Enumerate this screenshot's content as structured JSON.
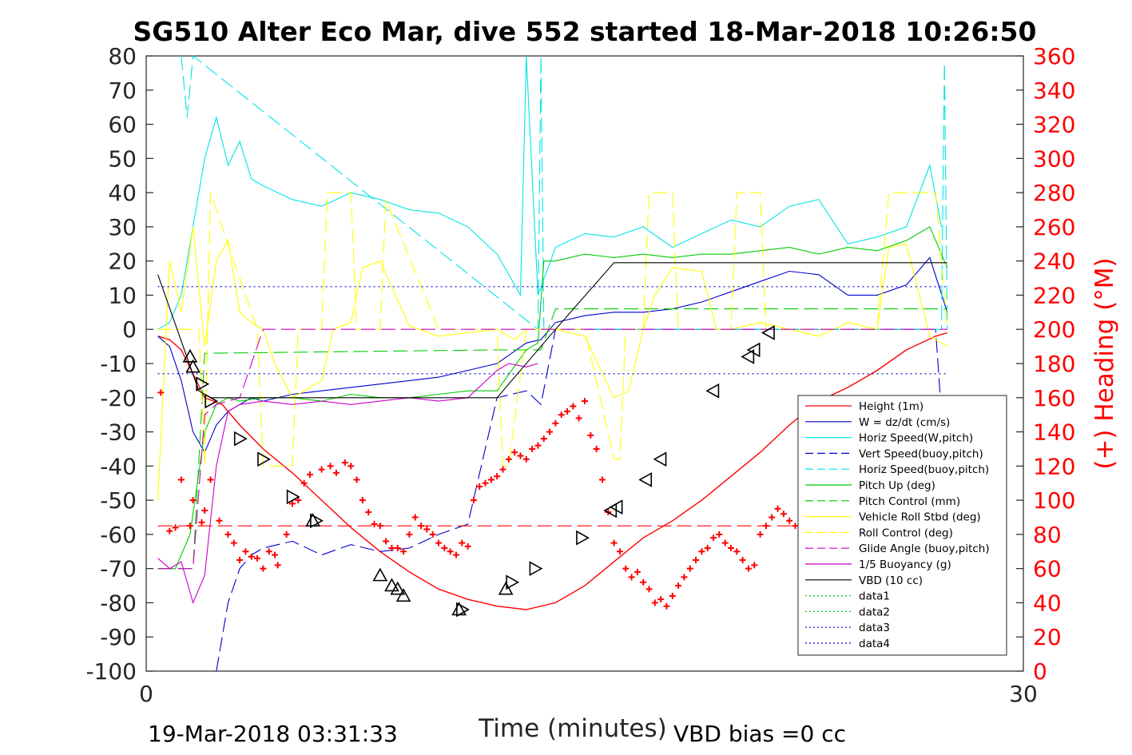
{
  "chart_data": {
    "type": "line",
    "title": "SG510 Alter Eco Mar, dive 552 started 18-Mar-2018 10:26:50",
    "xlabel": "Time (minutes)",
    "ylabel_right": "(+) Heading (°M)",
    "xlim": [
      0,
      30
    ],
    "ylim": [
      -100,
      80
    ],
    "ylim_right": [
      0,
      360
    ],
    "x_ticks": [
      "0",
      "30"
    ],
    "y_ticks": [
      "80",
      "70",
      "60",
      "50",
      "40",
      "30",
      "20",
      "10",
      "0",
      "-10",
      "-20",
      "-30",
      "-40",
      "-50",
      "-60",
      "-70",
      "-80",
      "-90",
      "-100"
    ],
    "y_right_ticks": [
      "360",
      "340",
      "320",
      "300",
      "280",
      "260",
      "240",
      "220",
      "200",
      "180",
      "160",
      "140",
      "120",
      "100",
      "80",
      "60",
      "40",
      "20",
      "0"
    ],
    "grid": false,
    "legend_position": "bottom-right",
    "footer_left": "19-Mar-2018 03:31:33",
    "footer_right": "VBD bias =0 cc",
    "colors": {
      "height": "#ff0000",
      "w": "#0000cc",
      "hspeed": "#00e5e5",
      "vspeed": "#0000cc",
      "hspeed_buoy": "#00e5e5",
      "pitch": "#00cc00",
      "pitch_ctrl": "#00cc00",
      "roll": "#ffff00",
      "roll_ctrl": "#ffff00",
      "glide": "#cc00cc",
      "buoy": "#cc00cc",
      "vbd": "#000000",
      "data12": "#00cc00",
      "data34": "#0000cc",
      "heading": "#ff0000"
    },
    "series": [
      {
        "name": "Height (1m)",
        "key": "height",
        "style": "solid",
        "x": [
          0.4,
          0.8,
          1.2,
          1.6,
          2.0,
          2.6,
          3.2,
          4.0,
          5.0,
          6.0,
          7.0,
          8.0,
          9.0,
          10.0,
          11.0,
          12.0,
          13.0,
          14.0,
          15.0,
          16.0,
          17.0,
          18.0,
          19.0,
          20.0,
          21.0,
          22.0,
          23.0,
          24.0,
          25.0,
          26.0,
          27.0,
          27.4
        ],
        "y": [
          -2,
          -3,
          -6,
          -13,
          -20,
          -22,
          -28,
          -35,
          -42,
          -50,
          -58,
          -65,
          -71,
          -76,
          -79,
          -81,
          -82,
          -80,
          -75,
          -68,
          -61,
          -56,
          -50,
          -43,
          -36,
          -28,
          -21,
          -17,
          -12,
          -6,
          -2,
          -1
        ]
      },
      {
        "name": "W = dz/dt (cm/s)",
        "key": "w",
        "style": "solid",
        "x": [
          0.4,
          0.8,
          1.2,
          1.6,
          2.0,
          2.4,
          2.8,
          3.2,
          3.6,
          4.0,
          5.0,
          6.0,
          7.0,
          8.0,
          9.0,
          10.0,
          11.0,
          12.0,
          13.0,
          13.5,
          14.0,
          15.0,
          16.0,
          17.0,
          18.0,
          19.0,
          20.0,
          21.0,
          22.0,
          23.0,
          24.0,
          25.0,
          26.0,
          26.8,
          27.4
        ],
        "y": [
          -2,
          -5,
          -15,
          -30,
          -36,
          -28,
          -24,
          -22,
          -20,
          -21,
          -19,
          -18,
          -17,
          -16,
          -15,
          -14,
          -12,
          -10,
          -4,
          -3,
          2,
          4,
          5,
          5,
          6,
          8,
          11,
          14,
          17,
          16,
          10,
          10,
          13,
          21,
          5
        ]
      },
      {
        "name": "Horiz Speed(W,pitch)",
        "key": "hspeed",
        "style": "solid",
        "x": [
          0.4,
          0.8,
          1.2,
          1.6,
          2.0,
          2.4,
          2.8,
          3.2,
          3.6,
          4.0,
          5.0,
          6.0,
          7.0,
          8.0,
          9.0,
          10.0,
          11.0,
          12.0,
          12.8,
          13.0,
          13.4,
          14.0,
          15.0,
          16.0,
          17.0,
          18.0,
          19.0,
          20.0,
          21.0,
          22.0,
          23.0,
          24.0,
          25.0,
          26.0,
          26.8,
          27.2
        ],
        "y": [
          0,
          2,
          10,
          30,
          50,
          62,
          48,
          55,
          44,
          42,
          38,
          36,
          40,
          38,
          35,
          34,
          30,
          22,
          10,
          80,
          10,
          24,
          28,
          27,
          30,
          24,
          28,
          32,
          30,
          36,
          38,
          25,
          27,
          30,
          48,
          30
        ]
      },
      {
        "name": "Vert Speed(buoy,pitch)",
        "key": "vspeed",
        "style": "dashed",
        "x": [
          2.4,
          2.8,
          3.2,
          3.6,
          4.0,
          5.0,
          6.0,
          7.0,
          8.0,
          9.0,
          10.0,
          11.0,
          12.0,
          13.0,
          13.5,
          14.0,
          15.0,
          16.0,
          17.0,
          18.0,
          19.0,
          20.0,
          21.0,
          22.0,
          23.0,
          24.0,
          25.0,
          26.0,
          27.0,
          27.4
        ],
        "y": [
          -100,
          -80,
          -70,
          -66,
          -64,
          -62,
          -66,
          -63,
          -65,
          -64,
          -60,
          -57,
          -20,
          -18,
          -22,
          0,
          0,
          0,
          0,
          0,
          0,
          0,
          0,
          0,
          0,
          0,
          0,
          0,
          0,
          -50
        ]
      },
      {
        "name": "Horiz Speed(buoy,pitch)",
        "key": "hspeed_buoy",
        "style": "dashed",
        "x": [
          1.2,
          1.4,
          1.6,
          13.4,
          13.5,
          13.6,
          27.2,
          27.3,
          27.4
        ],
        "y": [
          80,
          62,
          80,
          0,
          80,
          0,
          0,
          78,
          0
        ]
      },
      {
        "name": "Pitch Up (deg)",
        "key": "pitch",
        "style": "solid",
        "x": [
          0.4,
          1.0,
          1.5,
          2.0,
          2.4,
          2.8,
          3.2,
          4.0,
          5.0,
          6.0,
          7.0,
          8.0,
          9.0,
          10.0,
          11.0,
          12.0,
          13.0,
          13.4,
          13.6,
          14.0,
          15.0,
          16.0,
          17.0,
          18.0,
          19.0,
          20.0,
          21.0,
          22.0,
          23.0,
          24.0,
          25.0,
          26.0,
          26.8,
          27.4
        ],
        "y": [
          -70,
          -70,
          -60,
          -30,
          -22,
          -20,
          -21,
          -20,
          -20,
          -21,
          -19,
          -20,
          -20,
          -19,
          -18,
          -18,
          -6,
          -4,
          20,
          20,
          22,
          21,
          22,
          21,
          22,
          22,
          23,
          24,
          22,
          24,
          23,
          26,
          30,
          18
        ]
      },
      {
        "name": "Pitch Control (mm)",
        "key": "pitch_ctrl",
        "style": "dashed",
        "x": [
          0.4,
          1.6,
          2.0,
          12.0,
          12.6,
          13.5,
          14.0,
          27.4
        ],
        "y": [
          -70,
          -70,
          -7,
          -6,
          -6,
          -6,
          6,
          6
        ]
      },
      {
        "name": "Vehicle Roll Stbd (deg)",
        "key": "roll",
        "style": "solid",
        "x": [
          0.4,
          0.8,
          1.2,
          1.6,
          2.0,
          2.4,
          2.8,
          3.2,
          3.6,
          4.0,
          4.4,
          5.0,
          6.0,
          6.4,
          7.0,
          7.4,
          8.0,
          9.0,
          10.0,
          11.0,
          12.0,
          12.6,
          13.0,
          14.0,
          15.0,
          16.0,
          16.5,
          17.0,
          17.4,
          18.0,
          19.0,
          19.5,
          20.0,
          21.0,
          22.0,
          23.0,
          24.0,
          25.0,
          25.4,
          26.0,
          26.8,
          27.4
        ],
        "y": [
          -50,
          20,
          5,
          30,
          -5,
          20,
          26,
          5,
          2,
          0,
          -10,
          -20,
          -15,
          0,
          2,
          18,
          20,
          1,
          -2,
          -1,
          0,
          -3,
          0,
          0,
          -2,
          -20,
          -18,
          0,
          10,
          18,
          17,
          0,
          0,
          2,
          0,
          -2,
          2,
          0,
          24,
          25,
          -2,
          -5
        ]
      },
      {
        "name": "Roll Control (deg)",
        "key": "roll_ctrl",
        "style": "dashed",
        "x": [
          0.4,
          1.8,
          2.0,
          2.2,
          3.8,
          4.0,
          5.0,
          5.2,
          6.0,
          6.2,
          7.0,
          7.2,
          8.0,
          8.2,
          10.0,
          12.0,
          12.2,
          12.4,
          13.0,
          14.0,
          15.0,
          16.0,
          16.2,
          16.4,
          17.0,
          17.2,
          18.0,
          18.2,
          19.0,
          20.0,
          20.2,
          21.0,
          21.2,
          23.0,
          24.0,
          25.0,
          25.4,
          26.0,
          27.0,
          27.4
        ],
        "y": [
          0,
          0,
          -40,
          40,
          0,
          -40,
          -40,
          0,
          0,
          40,
          40,
          0,
          0,
          38,
          0,
          0,
          -40,
          -40,
          0,
          0,
          0,
          -38,
          -38,
          0,
          0,
          40,
          40,
          0,
          0,
          0,
          40,
          40,
          0,
          0,
          0,
          0,
          40,
          40,
          40,
          0
        ]
      },
      {
        "name": "Glide Angle (buoy,pitch)",
        "key": "glide",
        "style": "dashed",
        "x": [
          0.4,
          1.6,
          2.0,
          2.4,
          2.8,
          3.2,
          4.0,
          13.5,
          14.0,
          27.4
        ],
        "y": [
          -70,
          -70,
          -25,
          -22,
          -21,
          -20,
          0,
          0,
          0,
          0
        ]
      },
      {
        "name": "1/5 Buoyancy (g)",
        "key": "buoy",
        "style": "solid",
        "x": [
          0.4,
          0.8,
          1.2,
          1.6,
          2.0,
          2.4,
          2.8,
          3.2,
          4.0,
          5.0,
          6.0,
          7.0,
          8.0,
          9.0,
          10.0,
          11.0,
          12.0,
          12.4,
          13.0,
          13.4
        ],
        "y": [
          -67,
          -70,
          -68,
          -80,
          -72,
          -40,
          -24,
          -22,
          -21,
          -22,
          -21,
          -22,
          -21,
          -20,
          -21,
          -20,
          -12,
          -10,
          -11,
          -10
        ]
      },
      {
        "name": "VBD (10 cc)",
        "key": "vbd",
        "style": "solid",
        "x": [
          0.4,
          1.8,
          2.2,
          12.0,
          14.0,
          16.0,
          27.4
        ],
        "y": [
          16,
          -18,
          -20,
          -20,
          0,
          19.5,
          19.5
        ]
      },
      {
        "name": "data1",
        "key": "data12",
        "style": "dotted",
        "x": [],
        "y": []
      },
      {
        "name": "data2",
        "key": "data12",
        "style": "dotted",
        "x": [],
        "y": []
      },
      {
        "name": "data3",
        "key": "data34",
        "style": "dotted",
        "x": [
          0.4,
          27.4
        ],
        "y": [
          -13,
          -13
        ]
      },
      {
        "name": "data4",
        "key": "data34",
        "style": "dotted",
        "x": [
          0.4,
          27.4
        ],
        "y": [
          12.5,
          12.5
        ]
      },
      {
        "name": "",
        "key": "roll_ref",
        "style": "dashed",
        "color": "#ff0000",
        "x": [
          0.4,
          27.4
        ],
        "y": [
          -57.5,
          -57.5
        ]
      }
    ],
    "heading_points": {
      "x": [
        0.5,
        0.8,
        1.0,
        1.2,
        1.5,
        1.6,
        1.9,
        2.0,
        2.2,
        2.5,
        2.8,
        3.0,
        3.2,
        3.4,
        3.6,
        3.8,
        4.0,
        4.2,
        4.4,
        4.5,
        4.8,
        5.0,
        5.2,
        5.4,
        5.6,
        6.0,
        6.3,
        6.5,
        6.8,
        7.0,
        7.2,
        7.4,
        7.6,
        7.8,
        8.0,
        8.2,
        8.4,
        8.6,
        8.8,
        9.0,
        9.2,
        9.4,
        9.6,
        9.8,
        10.0,
        10.2,
        10.4,
        10.6,
        10.8,
        11.0,
        11.2,
        11.4,
        11.6,
        11.8,
        12.0,
        12.2,
        12.4,
        12.6,
        12.8,
        13.0,
        13.2,
        13.4,
        13.6,
        13.8,
        14.0,
        14.2,
        14.4,
        14.6,
        14.8,
        15.0,
        15.2,
        15.4,
        15.6,
        15.8,
        16.0,
        16.2,
        16.4,
        16.6,
        16.8,
        17.0,
        17.2,
        17.4,
        17.6,
        17.8,
        18.0,
        18.2,
        18.4,
        18.6,
        18.8,
        19.0,
        19.2,
        19.4,
        19.6,
        19.8,
        20.0,
        20.2,
        20.4,
        20.6,
        20.8,
        21.0,
        21.2,
        21.4,
        21.6,
        21.8,
        22.0,
        22.2,
        22.4,
        22.6,
        22.8,
        23.0,
        23.2,
        23.4,
        23.6,
        23.8,
        24.0,
        24.2,
        24.4,
        24.6,
        24.8,
        25.0,
        25.2,
        25.4,
        25.6,
        25.8,
        26.0,
        26.2,
        26.4,
        26.6,
        26.8,
        27.0,
        27.2
      ],
      "y": [
        163,
        82,
        84,
        112,
        85,
        100,
        87,
        94,
        112,
        88,
        80,
        75,
        65,
        70,
        67,
        66,
        60,
        70,
        68,
        62,
        80,
        98,
        100,
        110,
        115,
        118,
        120,
        116,
        122,
        120,
        112,
        100,
        93,
        86,
        85,
        76,
        72,
        72,
        70,
        80,
        90,
        85,
        83,
        80,
        75,
        72,
        70,
        68,
        75,
        73,
        100,
        108,
        110,
        112,
        114,
        118,
        124,
        128,
        126,
        124,
        130,
        132,
        136,
        140,
        145,
        150,
        152,
        155,
        148,
        158,
        138,
        130,
        112,
        93,
        75,
        70,
        60,
        55,
        58,
        52,
        48,
        40,
        42,
        38,
        44,
        50,
        55,
        60,
        65,
        70,
        72,
        78,
        80,
        75,
        72,
        70,
        65,
        60,
        62,
        80,
        85,
        90,
        95,
        92,
        88,
        85,
        82,
        80,
        78,
        76,
        74,
        60,
        58,
        50,
        46,
        44,
        42,
        60,
        62,
        55,
        60,
        62,
        64,
        70,
        72,
        74,
        76,
        104,
        110,
        104,
        108
      ],
      "ylim": [
        0,
        360
      ]
    },
    "triangles": [
      {
        "x": 1.5,
        "y": -8,
        "dir": "up"
      },
      {
        "x": 1.6,
        "y": -11,
        "dir": "up"
      },
      {
        "x": 1.9,
        "y": -16,
        "dir": "right"
      },
      {
        "x": 2.2,
        "y": -21,
        "dir": "right"
      },
      {
        "x": 3.2,
        "y": -32,
        "dir": "right"
      },
      {
        "x": 4.0,
        "y": -38,
        "dir": "right"
      },
      {
        "x": 5.0,
        "y": -49,
        "dir": "right"
      },
      {
        "x": 5.8,
        "y": -56,
        "dir": "right"
      },
      {
        "x": 5.7,
        "y": -56,
        "dir": "up"
      },
      {
        "x": 8.0,
        "y": -72,
        "dir": "up"
      },
      {
        "x": 8.4,
        "y": -75,
        "dir": "up"
      },
      {
        "x": 8.6,
        "y": -76,
        "dir": "up"
      },
      {
        "x": 8.8,
        "y": -78,
        "dir": "up"
      },
      {
        "x": 10.7,
        "y": -82,
        "dir": "up"
      },
      {
        "x": 10.8,
        "y": -82,
        "dir": "right"
      },
      {
        "x": 12.3,
        "y": -76,
        "dir": "up"
      },
      {
        "x": 12.5,
        "y": -74,
        "dir": "right"
      },
      {
        "x": 13.3,
        "y": -70,
        "dir": "right"
      },
      {
        "x": 14.9,
        "y": -61,
        "dir": "right"
      },
      {
        "x": 15.9,
        "y": -53,
        "dir": "left"
      },
      {
        "x": 16.1,
        "y": -52,
        "dir": "left"
      },
      {
        "x": 17.1,
        "y": -44,
        "dir": "left"
      },
      {
        "x": 17.6,
        "y": -38,
        "dir": "left"
      },
      {
        "x": 19.4,
        "y": -18,
        "dir": "left"
      },
      {
        "x": 20.6,
        "y": -8,
        "dir": "left"
      },
      {
        "x": 20.8,
        "y": -6,
        "dir": "left"
      },
      {
        "x": 21.3,
        "y": -1,
        "dir": "left"
      }
    ],
    "triangle_x_scale_note": ""
  }
}
